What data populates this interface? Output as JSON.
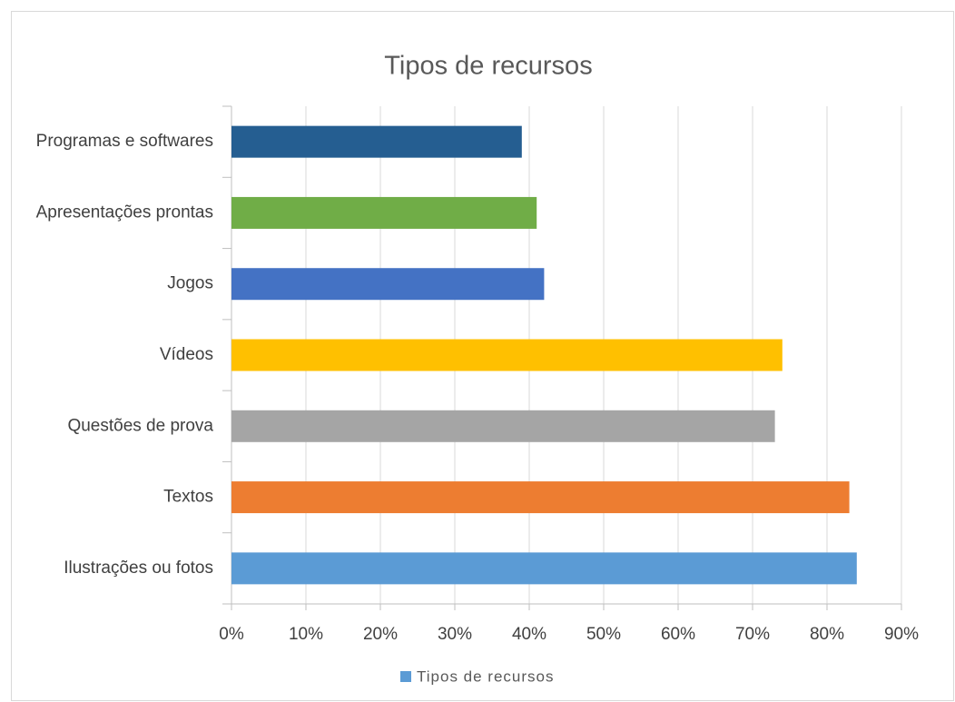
{
  "chart_data": {
    "type": "bar",
    "orientation": "horizontal",
    "title": "Tipos de recursos",
    "categories": [
      "Ilustrações ou fotos",
      "Textos",
      "Questões de prova",
      "Vídeos",
      "Jogos",
      "Apresentações prontas",
      "Programas e softwares"
    ],
    "series": [
      {
        "name": "Tipos de recursos",
        "color": "#5b9bd5",
        "values": [
          84,
          83,
          73,
          74,
          42,
          41,
          39
        ]
      }
    ],
    "colors": [
      "#5b9bd5",
      "#ed7d31",
      "#a5a5a5",
      "#ffc000",
      "#4472c4",
      "#70ad47",
      "#255e91"
    ],
    "xlim": [
      0,
      90
    ],
    "xticks": [
      {
        "value": 0,
        "label": "0%"
      },
      {
        "value": 10,
        "label": "10%"
      },
      {
        "value": 20,
        "label": "20%"
      },
      {
        "value": 30,
        "label": "30%"
      },
      {
        "value": 40,
        "label": "40%"
      },
      {
        "value": 50,
        "label": "50%"
      },
      {
        "value": 60,
        "label": "60%"
      },
      {
        "value": 70,
        "label": "70%"
      },
      {
        "value": 80,
        "label": "80%"
      },
      {
        "value": 90,
        "label": "90%"
      }
    ],
    "grid": true,
    "legend": "bottom"
  }
}
